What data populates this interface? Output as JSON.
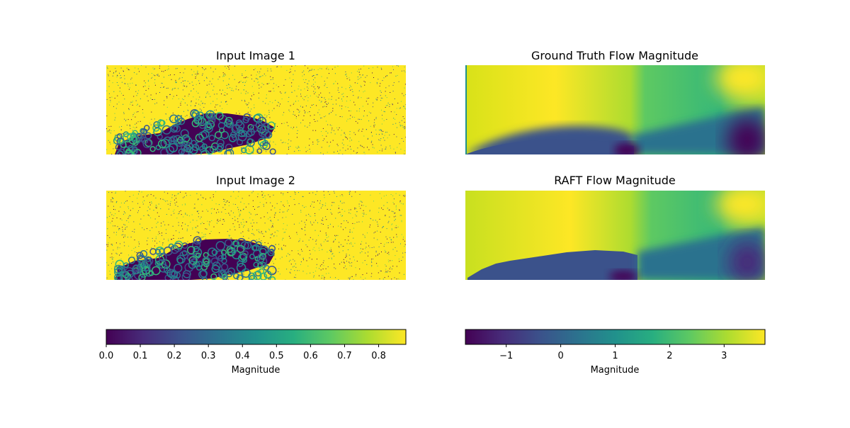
{
  "chart_data": [
    {
      "type": "heatmap",
      "title": "Input Image 1",
      "description_values": {
        "background_level": 0.85,
        "blob_level": 0.05
      },
      "colormap": "viridis",
      "value_range": [
        0.0,
        0.88
      ]
    },
    {
      "type": "heatmap",
      "title": "Ground Truth Flow Magnitude",
      "colormap": "viridis",
      "value_range": [
        -1.75,
        3.75
      ]
    },
    {
      "type": "heatmap",
      "title": "Input Image 2",
      "description_values": {
        "background_level": 0.85,
        "blob_level": 0.05
      },
      "colormap": "viridis",
      "value_range": [
        0.0,
        0.88
      ]
    },
    {
      "type": "heatmap",
      "title": "RAFT Flow Magnitude",
      "colormap": "viridis",
      "value_range": [
        -1.75,
        3.75
      ]
    }
  ],
  "colorbars": [
    {
      "label": "Magnitude",
      "range": [
        0.0,
        0.88
      ],
      "ticks": [
        "0.0",
        "0.1",
        "0.2",
        "0.3",
        "0.4",
        "0.5",
        "0.6",
        "0.7",
        "0.8"
      ],
      "tick_values": [
        0.0,
        0.1,
        0.2,
        0.3,
        0.4,
        0.5,
        0.6,
        0.7,
        0.8
      ]
    },
    {
      "label": "Magnitude",
      "range": [
        -1.75,
        3.75
      ],
      "ticks": [
        "−1",
        "0",
        "1",
        "2",
        "3"
      ],
      "tick_values": [
        -1,
        0,
        1,
        2,
        3
      ]
    }
  ],
  "colors": {
    "viridis_0": "#440154",
    "viridis_25": "#3b528b",
    "viridis_50": "#21918c",
    "viridis_75": "#5ec962",
    "viridis_100": "#fde725"
  }
}
